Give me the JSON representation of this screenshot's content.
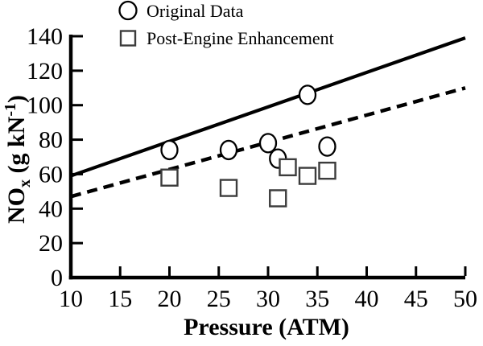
{
  "colors": {
    "background": "#ffffff",
    "line": "#000000",
    "square_stroke": "#3c3c3c"
  },
  "legend": {
    "original_label": "Original Data",
    "enhanced_label": "Post-Engine Enhancement"
  },
  "chart_data": {
    "type": "scatter",
    "title": "",
    "xlabel": "Pressure (ATM)",
    "ylabel": "NOx (g kN-1)",
    "ylabel_rich": [
      {
        "t": "NO"
      },
      {
        "t": "x",
        "sub": true
      },
      {
        "t": " (g kN"
      },
      {
        "t": "-1",
        "sup": true
      },
      {
        "t": ")"
      }
    ],
    "xlim": [
      10,
      50
    ],
    "ylim": [
      0,
      140
    ],
    "x_ticks": [
      10,
      15,
      20,
      25,
      30,
      35,
      40,
      45,
      50
    ],
    "y_ticks": [
      0,
      20,
      40,
      60,
      80,
      100,
      120,
      140
    ],
    "grid": false,
    "legend_position": "top-left",
    "series": [
      {
        "name": "Original Data",
        "marker": "circle",
        "points": [
          [
            20,
            74
          ],
          [
            26,
            74
          ],
          [
            30,
            78
          ],
          [
            31,
            69
          ],
          [
            34,
            106
          ],
          [
            36,
            76
          ]
        ]
      },
      {
        "name": "Post-Engine Enhancement",
        "marker": "square",
        "points": [
          [
            20,
            58
          ],
          [
            26,
            52
          ],
          [
            31,
            46
          ],
          [
            32,
            64
          ],
          [
            34,
            59
          ],
          [
            36,
            62
          ]
        ]
      }
    ],
    "trend_lines": [
      {
        "series": "Original Data",
        "style": "solid",
        "from": [
          10,
          59
        ],
        "to": [
          50,
          139
        ]
      },
      {
        "series": "Post-Engine Enhancement",
        "style": "dashed",
        "from": [
          10,
          47
        ],
        "to": [
          50,
          110
        ]
      }
    ]
  }
}
